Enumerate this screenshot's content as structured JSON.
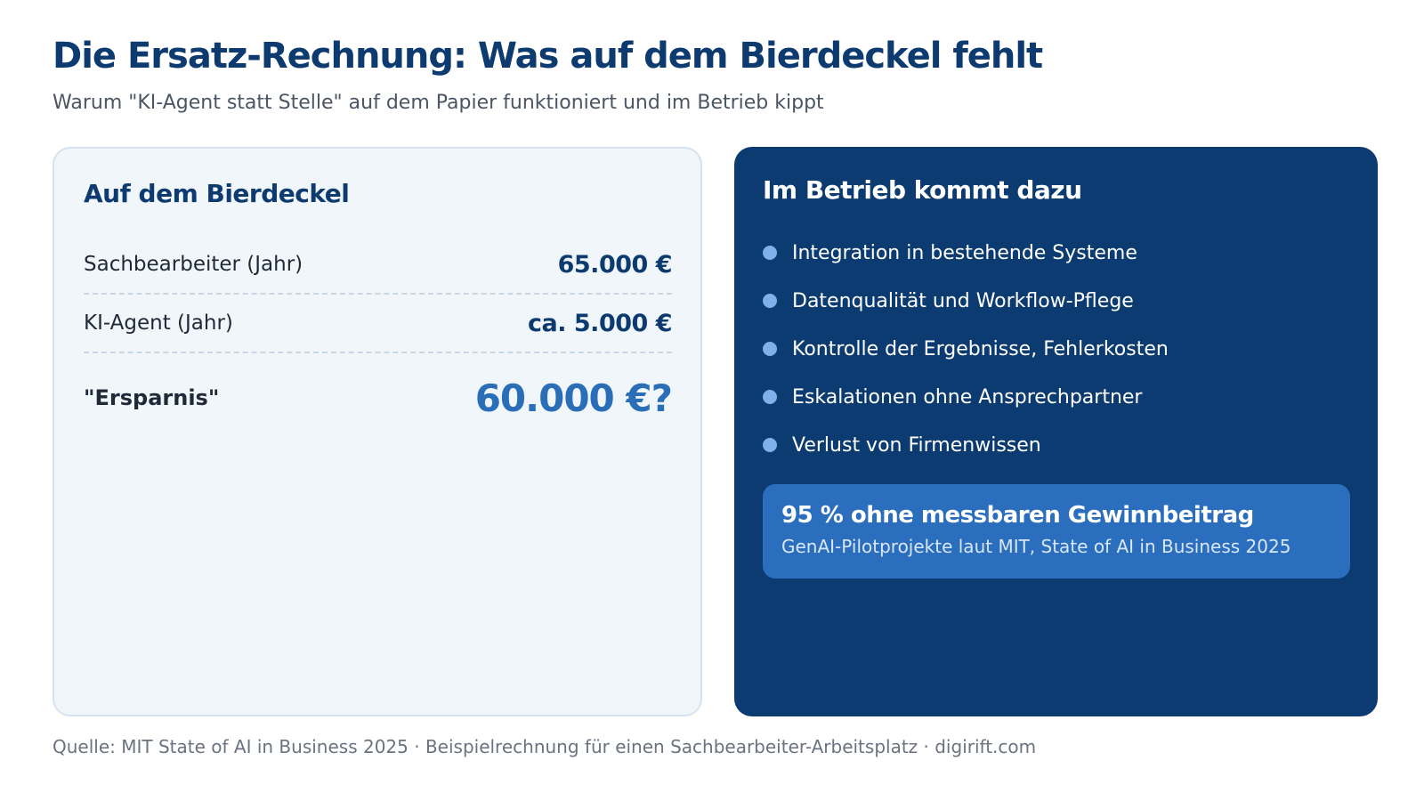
{
  "header": {
    "title": "Die Ersatz-Rechnung: Was auf dem Bierdeckel fehlt",
    "subtitle": "Warum \"KI-Agent statt Stelle\" auf dem Papier funktioniert und im Betrieb kippt"
  },
  "left_card": {
    "title": "Auf dem Bierdeckel",
    "rows": [
      {
        "label": "Sachbearbeiter (Jahr)",
        "value": "65.000 €"
      },
      {
        "label": "KI-Agent (Jahr)",
        "value": "ca. 5.000 €"
      },
      {
        "label": "\"Ersparnis\"",
        "value": "60.000 €?"
      }
    ]
  },
  "right_card": {
    "title": "Im Betrieb kommt dazu",
    "bullets": [
      "Integration in bestehende Systeme",
      "Datenqualität und Workflow-Pflege",
      "Kontrolle der Ergebnisse, Fehlerkosten",
      "Eskalationen ohne Ansprechpartner",
      "Verlust von Firmenwissen"
    ],
    "callout": {
      "title": "95 % ohne messbaren Gewinnbeitrag",
      "subtitle": "GenAI-Pilotprojekte laut MIT, State of AI in Business 2025"
    }
  },
  "footer": {
    "source": "Quelle: MIT State of AI in Business 2025 · Beispielrechnung für einen Sachbearbeiter-Arbeitsplatz · digirift.com"
  },
  "colors": {
    "primary_navy": "#0d3b70",
    "accent_blue": "#2a6eb8",
    "bullet_dot": "#7fb0ea",
    "left_card_bg": "#f1f6fa",
    "right_card_bg": "#0c3b72"
  }
}
